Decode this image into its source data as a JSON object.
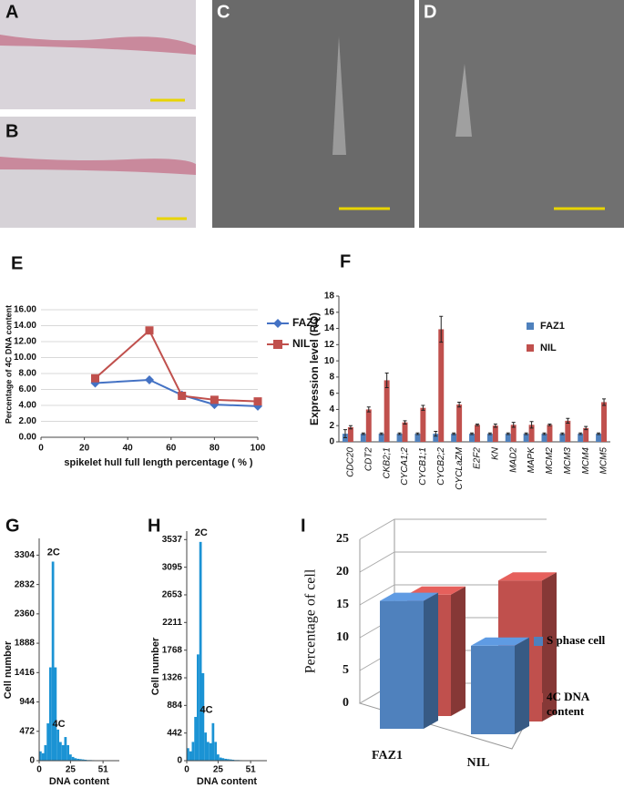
{
  "image_panels": [
    {
      "label": "A"
    },
    {
      "label": "B"
    },
    {
      "label": "C"
    },
    {
      "label": "D"
    }
  ],
  "chart_data": [
    {
      "type": "line",
      "label": "E",
      "y_label": "Percentage of 4C DNA content",
      "x_label": "spikelet hull full length percentage ( % )",
      "x": [
        25,
        50,
        65,
        80,
        100
      ],
      "series": [
        {
          "name": "FAZ1",
          "color": "#4472c4",
          "marker": "diamond",
          "values": [
            6.8,
            7.2,
            5.3,
            4.1,
            3.9
          ]
        },
        {
          "name": "NIL",
          "color": "#c0504d",
          "marker": "square",
          "values": [
            7.4,
            13.4,
            5.2,
            4.7,
            4.5
          ]
        }
      ],
      "xlim": [
        0,
        100
      ],
      "xticks": [
        0,
        20,
        40,
        60,
        80,
        100
      ],
      "ylim": [
        0,
        16
      ],
      "yticks": [
        {
          "value": 0,
          "label": "0.00"
        },
        {
          "value": 2,
          "label": "2.00"
        },
        {
          "value": 4,
          "label": "4.00"
        },
        {
          "value": 6,
          "label": "6.00"
        },
        {
          "value": 8,
          "label": "8.00"
        },
        {
          "value": 10,
          "label": "10.00"
        },
        {
          "value": 12,
          "label": "12.00"
        },
        {
          "value": 14,
          "label": "14.00"
        },
        {
          "value": 16,
          "label": "16.00"
        }
      ],
      "legend": "right"
    },
    {
      "type": "bar",
      "label": "F",
      "y_label": "Expression level (RQ)",
      "categories": [
        "CDC20",
        "CDT2",
        "CKB2;1",
        "CYCA1;2",
        "CYCB1;1",
        "CYCB2;2",
        "CYCLaZM",
        "E2F2",
        "KN",
        "MAD2",
        "MAPK",
        "MCM2",
        "MCM3",
        "MCM4",
        "MCM5"
      ],
      "series": [
        {
          "name": "FAZ1",
          "color": "#4f81bd",
          "values": [
            1.0,
            1.0,
            1.0,
            1.0,
            1.0,
            1.0,
            1.0,
            1.0,
            1.0,
            1.0,
            1.0,
            1.0,
            1.0,
            1.0,
            1.0
          ],
          "errors": [
            0.5,
            0.1,
            0.1,
            0.1,
            0.1,
            0.3,
            0.1,
            0.1,
            0.1,
            0.1,
            0.1,
            0.1,
            0.1,
            0.1,
            0.1
          ]
        },
        {
          "name": "NIL",
          "color": "#c0504d",
          "values": [
            1.8,
            4.0,
            7.6,
            2.4,
            4.2,
            13.9,
            4.6,
            2.1,
            2.0,
            2.1,
            2.1,
            2.1,
            2.6,
            1.7,
            4.9
          ],
          "errors": [
            0.2,
            0.3,
            0.9,
            0.2,
            0.3,
            1.6,
            0.3,
            0.1,
            0.2,
            0.3,
            0.4,
            0.1,
            0.3,
            0.2,
            0.4
          ]
        }
      ],
      "ylim": [
        0,
        18
      ],
      "yticks": [
        0,
        2,
        4,
        6,
        8,
        10,
        12,
        14,
        16,
        18
      ],
      "legend": "right"
    },
    {
      "type": "histogram",
      "label": "G",
      "y_label": "Cell number",
      "x_label": "DNA content",
      "annotations": [
        "2C",
        "4C"
      ],
      "color": "#1b93d4",
      "bins": [
        0,
        2,
        4,
        6,
        8,
        10,
        12,
        14,
        16,
        18,
        20,
        22,
        24,
        26,
        28,
        30,
        32,
        34,
        36,
        38,
        40,
        42,
        44,
        46,
        48,
        50,
        52,
        54,
        56,
        58,
        60,
        62,
        64
      ],
      "counts": [
        150,
        120,
        250,
        600,
        1500,
        3200,
        1500,
        500,
        300,
        250,
        380,
        250,
        100,
        60,
        40,
        30,
        25,
        20,
        15,
        10,
        10,
        8,
        6,
        5,
        4,
        3,
        2,
        2,
        1,
        1,
        1,
        1
      ],
      "xlim": [
        0,
        64
      ],
      "xticks": [
        0,
        25,
        51
      ],
      "ylim": [
        0,
        3500
      ],
      "yticks": [
        0,
        472,
        944,
        1416,
        1888,
        2360,
        2832,
        3304
      ]
    },
    {
      "type": "histogram",
      "label": "H",
      "y_label": "Cell number",
      "x_label": "DNA content",
      "annotations": [
        "2C",
        "4C"
      ],
      "color": "#1b93d4",
      "bins": [
        0,
        2,
        4,
        6,
        8,
        10,
        12,
        14,
        16,
        18,
        20,
        22,
        24,
        26,
        28,
        30,
        32,
        34,
        36,
        38,
        40,
        42,
        44,
        46,
        48,
        50,
        52,
        54,
        56,
        58,
        60,
        62,
        64
      ],
      "counts": [
        200,
        150,
        300,
        700,
        1700,
        3500,
        1400,
        450,
        300,
        280,
        600,
        300,
        100,
        50,
        40,
        30,
        25,
        20,
        15,
        10,
        10,
        8,
        6,
        5,
        4,
        3,
        2,
        2,
        1,
        1,
        1,
        1
      ],
      "xlim": [
        0,
        64
      ],
      "xticks": [
        0,
        25,
        51
      ],
      "ylim": [
        0,
        3600
      ],
      "yticks": [
        0,
        442,
        884,
        1326,
        1768,
        2211,
        2653,
        3095,
        3537
      ]
    },
    {
      "type": "bar3d",
      "label": "I",
      "y_label": "Percentage of cell",
      "categories": [
        "FAZ1",
        "NIL"
      ],
      "series": [
        {
          "name": "S phase cell",
          "color": "#4f81bd",
          "values": [
            19.5,
            13.5
          ]
        },
        {
          "name": "4C DNA content",
          "color": "#c0504d",
          "values": [
            18.5,
            21.5
          ]
        }
      ],
      "ylim": [
        0,
        25
      ],
      "yticks": [
        0,
        5,
        10,
        15,
        20,
        25
      ]
    }
  ]
}
